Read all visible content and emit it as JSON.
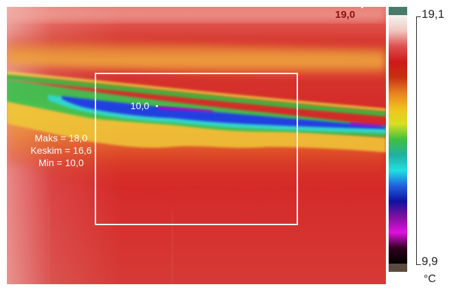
{
  "image": {
    "description_colors": {
      "background_red": "#d62828",
      "warm_band": "#e8a040",
      "cold_line_blue": "#2040e0",
      "cold_line_purple": "#b000c8"
    }
  },
  "scale": {
    "max_label": "19,1",
    "min_label": "9,9",
    "unit": "°C",
    "palette": [
      "#f4f4f0",
      "#f0c8c0",
      "#e05050",
      "#d01818",
      "#c83010",
      "#e88020",
      "#f0c020",
      "#d8e020",
      "#40c040",
      "#20b0a0",
      "#20e0e0",
      "#2060e0",
      "#1010a0",
      "#8010a0",
      "#e010e0",
      "#300020",
      "#000000"
    ]
  },
  "spots": {
    "max_label": "19,0",
    "min_label": "10,0"
  },
  "measurement_box": {
    "max_text": "Maks = 18,0",
    "avg_text": "Keskim = 16,6",
    "min_text": "Min = 10,0"
  }
}
